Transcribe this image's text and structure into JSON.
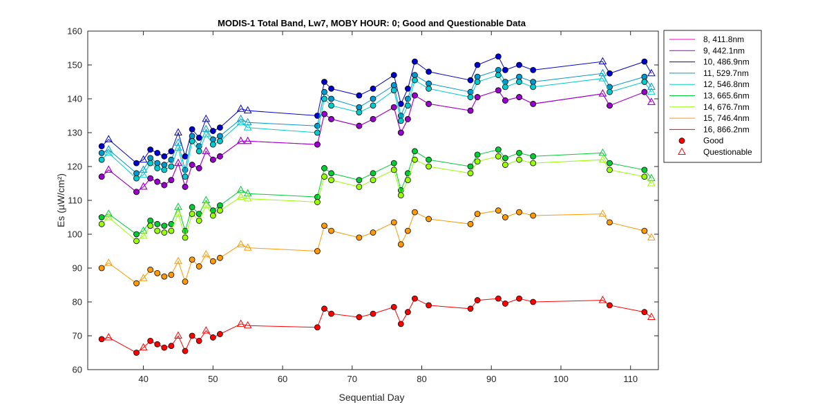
{
  "chart_data": {
    "type": "line",
    "title": "MODIS-1 Total Band,  Lw7, MOBY HOUR: 0;  Good and Questionable Data",
    "xlabel": "Sequential Day",
    "ylabel": "Es (µW/cm²)",
    "xlim": [
      32,
      114
    ],
    "ylim": [
      60,
      160
    ],
    "xticks": [
      "40",
      "50",
      "60",
      "70",
      "80",
      "90",
      "100",
      "110"
    ],
    "yticks": [
      "60",
      "70",
      "80",
      "90",
      "100",
      "110",
      "120",
      "130",
      "140",
      "150",
      "160"
    ],
    "grid": false,
    "legend_position": "outside-right-top",
    "x": [
      34,
      35,
      39,
      40,
      41,
      42,
      43,
      44,
      45,
      46,
      47,
      48,
      49,
      50,
      51,
      54,
      55,
      65,
      66,
      67,
      71,
      73,
      76,
      77,
      78,
      79,
      81,
      87,
      88,
      91,
      92,
      94,
      96,
      106,
      107,
      112,
      113
    ],
    "quality": [
      "G",
      "Q",
      "G",
      "Q",
      "G",
      "G",
      "G",
      "G",
      "Q",
      "G",
      "G",
      "G",
      "Q",
      "G",
      "G",
      "Q",
      "Q",
      "G",
      "G",
      "G",
      "G",
      "G",
      "G",
      "G",
      "G",
      "G",
      "G",
      "G",
      "G",
      "G",
      "G",
      "G",
      "G",
      "Q",
      "G",
      "G",
      "Q"
    ],
    "series": [
      {
        "name": "8, 411.8nm",
        "color": "#ff00cc",
        "values": [
          117,
          119,
          112.5,
          114,
          116.5,
          115.5,
          114.5,
          116,
          121,
          114,
          120.5,
          119.5,
          124.5,
          122,
          123,
          127.5,
          127.5,
          126.5,
          135.5,
          134,
          132,
          134,
          137.5,
          130,
          134,
          141,
          138.5,
          136.5,
          140.5,
          142.5,
          139.5,
          140.5,
          138.5,
          141.5,
          138,
          142,
          139
        ]
      },
      {
        "name": "9, 442.1nm",
        "color": "#9900cc",
        "values": [
          117,
          119,
          112.5,
          114,
          116.5,
          115.5,
          114.5,
          116,
          121,
          114,
          120.5,
          119.5,
          124.5,
          122,
          123,
          127.5,
          127.5,
          126.5,
          135.5,
          134,
          132,
          134,
          137.5,
          130,
          134,
          141,
          138.5,
          136.5,
          140.5,
          142.5,
          139.5,
          140.5,
          138.5,
          141.5,
          138,
          142,
          139
        ]
      },
      {
        "name": "10, 486.9nm",
        "color": "#0000cc",
        "values": [
          126,
          128,
          121,
          122,
          125,
          124,
          123,
          124.5,
          130,
          123,
          131,
          128.5,
          134,
          130.5,
          131.5,
          137,
          136.5,
          135,
          145,
          143,
          141,
          143,
          147,
          138.5,
          143,
          151,
          148,
          145.5,
          150,
          152.5,
          148.5,
          150,
          148.5,
          151,
          147.5,
          151,
          147.5
        ]
      },
      {
        "name": "11, 529.7nm",
        "color": "#0099cc",
        "values": [
          124,
          125,
          118,
          119,
          122.5,
          121,
          120.5,
          122,
          127,
          119,
          129,
          126,
          131,
          128,
          129,
          134,
          133,
          132,
          142,
          140,
          137.5,
          140,
          144,
          135,
          140,
          147,
          144.5,
          142,
          146.5,
          148.5,
          145,
          146.5,
          145,
          147.5,
          143.5,
          146.5,
          143.5
        ]
      },
      {
        "name": "12, 546.8nm",
        "color": "#00cccc",
        "values": [
          122,
          124,
          116.5,
          117.5,
          121,
          119.5,
          119,
          120,
          125.5,
          117,
          127.5,
          124.5,
          129.5,
          126.5,
          127.5,
          133,
          131.5,
          130,
          140,
          138,
          136,
          138,
          142.5,
          133.5,
          138,
          145.5,
          143,
          140.5,
          145,
          147,
          143.5,
          145,
          143.5,
          146,
          142,
          145,
          142
        ]
      },
      {
        "name": "13, 665.6nm",
        "color": "#00cc33",
        "values": [
          105,
          106,
          100,
          101,
          104,
          103,
          102.5,
          103,
          108,
          101,
          108,
          106,
          110,
          107,
          108.5,
          113,
          112,
          111,
          119.5,
          118,
          116,
          118,
          121,
          113,
          118,
          124.5,
          122,
          120,
          123.5,
          125,
          122.5,
          124,
          123,
          124,
          121,
          119,
          116.5
        ]
      },
      {
        "name": "14, 676.7nm",
        "color": "#99ff00",
        "values": [
          103,
          105,
          98,
          99.5,
          102.5,
          101,
          100.5,
          101,
          106,
          99,
          106,
          104,
          108.5,
          105.5,
          107,
          111,
          110.5,
          109.5,
          117,
          116,
          114,
          116,
          119,
          111.5,
          116,
          122,
          120,
          118,
          121.5,
          123,
          120.5,
          122,
          121,
          122,
          119,
          117,
          115
        ]
      },
      {
        "name": "15, 746.4nm",
        "color": "#ff9900",
        "values": [
          90,
          91.5,
          85.5,
          87,
          89.5,
          88.5,
          87.5,
          88,
          92,
          86,
          92.5,
          90.5,
          94,
          92,
          93,
          97,
          96,
          95,
          102.5,
          101,
          99,
          100.5,
          103.5,
          97,
          101,
          106.5,
          104.5,
          103,
          106,
          107,
          105,
          106.5,
          105.5,
          106,
          103.5,
          101,
          99
        ]
      },
      {
        "name": "16, 866.2nm",
        "color": "#ff0000",
        "values": [
          69,
          69.5,
          65,
          66.5,
          68.5,
          67.5,
          66.5,
          67,
          70,
          65.5,
          70,
          68.5,
          71.5,
          69.5,
          70.5,
          73.5,
          73,
          72.5,
          78,
          76.5,
          75.5,
          76.5,
          78.5,
          73.5,
          77,
          81,
          79,
          78,
          80.5,
          81,
          79.5,
          81,
          80,
          80.5,
          79,
          77,
          75.5
        ]
      }
    ],
    "legend_extra": [
      {
        "label": "Good",
        "marker": "circle"
      },
      {
        "label": "Questionable",
        "marker": "triangle"
      }
    ]
  }
}
